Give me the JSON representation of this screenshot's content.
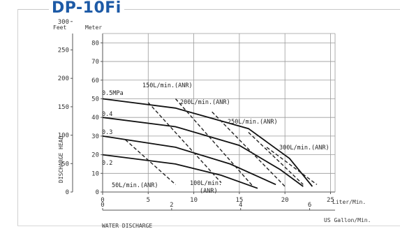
{
  "chart_data": {
    "type": "line",
    "title": "DP-10Fi",
    "units": {
      "left_outer": "Feet",
      "left_inner": "Meter",
      "bottom_outer": "US Gallon/Min.",
      "bottom_inner": "Liter/Min."
    },
    "xlabel": "WATER DISCHARGE",
    "ylabel": "DISCHARGE HEAD",
    "x_ticks_liter": [
      "0",
      "5",
      "10",
      "15",
      "20",
      "25"
    ],
    "x_ticks_gallon": [
      "0",
      "2",
      "4",
      "6"
    ],
    "y_ticks_meter": [
      "0",
      "10",
      "20",
      "30",
      "40",
      "50",
      "60",
      "70",
      "80"
    ],
    "y_ticks_feet": [
      "0",
      "50",
      "100",
      "150",
      "200",
      "250",
      "300"
    ],
    "xlim": [
      0,
      25
    ],
    "ylim": [
      0,
      85
    ],
    "pressure_series": [
      {
        "name": "0.5MPa",
        "points": [
          [
            0,
            50
          ],
          [
            8,
            45
          ],
          [
            16,
            34
          ],
          [
            20.5,
            18
          ],
          [
            23,
            3
          ]
        ]
      },
      {
        "name": "0.4",
        "points": [
          [
            0,
            40
          ],
          [
            8,
            35
          ],
          [
            15,
            25
          ],
          [
            19.5,
            12
          ],
          [
            22,
            3
          ]
        ]
      },
      {
        "name": "0.3",
        "points": [
          [
            0,
            30
          ],
          [
            8,
            24
          ],
          [
            14,
            15
          ],
          [
            19,
            4
          ]
        ]
      },
      {
        "name": "0.2",
        "points": [
          [
            0,
            20
          ],
          [
            8,
            15
          ],
          [
            13,
            9
          ],
          [
            17,
            2
          ]
        ]
      }
    ],
    "air_consumption_series": [
      {
        "name": "50L/min.(ANR)",
        "points": [
          [
            2.5,
            28
          ],
          [
            8,
            4
          ]
        ]
      },
      {
        "name": "100L/min.(ANR)",
        "points": [
          [
            5,
            48
          ],
          [
            13,
            5
          ]
        ]
      },
      {
        "name": "150L/min.(ANR)",
        "points": [
          [
            8,
            50
          ],
          [
            16.5,
            3
          ]
        ]
      },
      {
        "name": "200L/min.(ANR)",
        "points": [
          [
            12,
            43
          ],
          [
            20,
            3
          ]
        ]
      },
      {
        "name": "250L/min.(ANR)",
        "points": [
          [
            16,
            32
          ],
          [
            22,
            4
          ]
        ]
      },
      {
        "name": "300L/min.(ANR)",
        "points": [
          [
            18,
            24
          ],
          [
            23.5,
            4
          ]
        ]
      }
    ],
    "annotations": {
      "a50": "50L/min.(ANR)",
      "a100_line1": "100L/min.",
      "a100_line2": "(ANR)",
      "a150": "150L/min.(ANR)",
      "a200": "200L/min.(ANR)",
      "a250": "250L/min.(ANR)",
      "a300": "300L/min.(ANR)",
      "p05": "0.5MPa",
      "p04": "0.4",
      "p03": "0.3",
      "p02": "0.2"
    },
    "grid": true,
    "legend": "none"
  }
}
